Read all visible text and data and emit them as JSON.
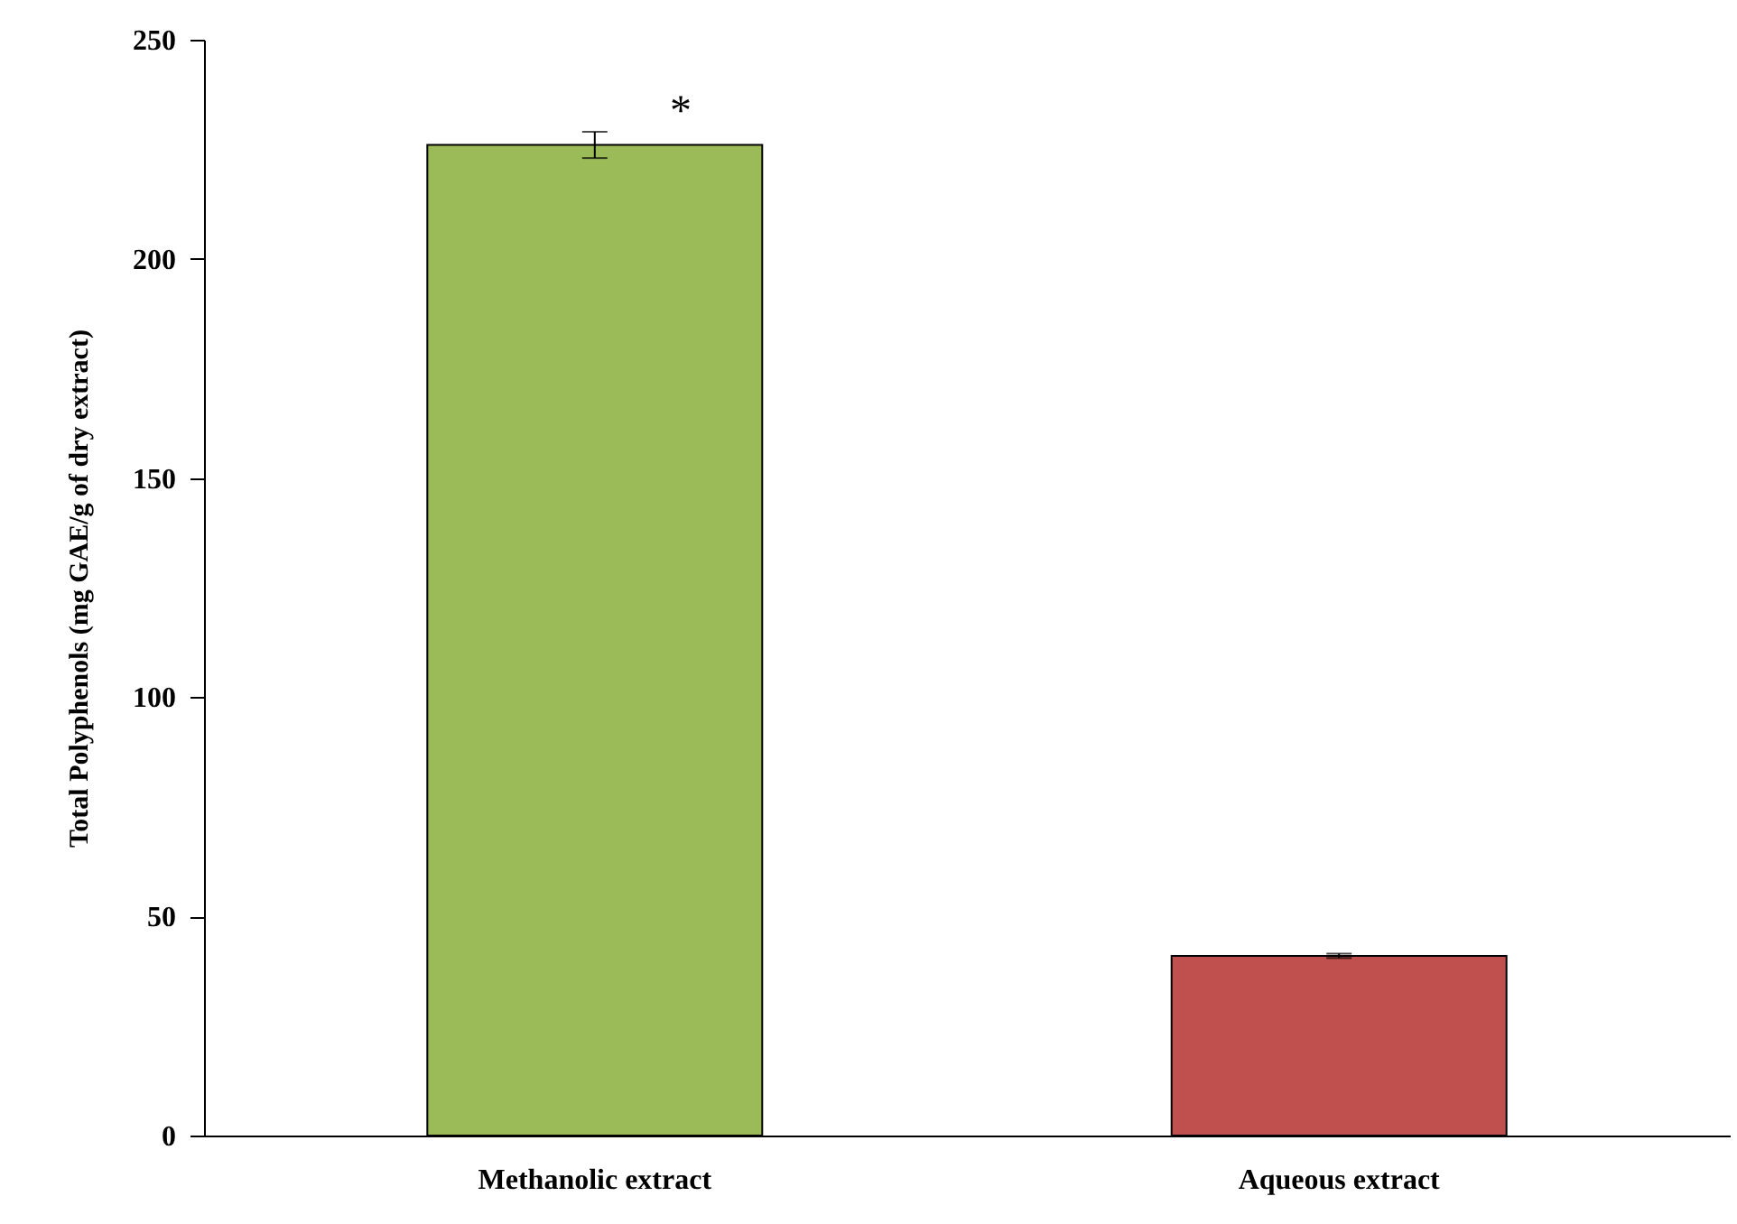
{
  "chart_data": {
    "type": "bar",
    "ylabel": "Total Polyphenols (mg GAE/g of dry extract)",
    "categories": [
      "Methanolic extract",
      "Aqueous extract"
    ],
    "values": [
      226,
      41
    ],
    "errors": [
      3,
      0.5
    ],
    "colors": [
      "#9bbb59",
      "#c0504d"
    ],
    "ylim": [
      0,
      250
    ],
    "yticks": [
      0,
      50,
      100,
      150,
      200,
      250
    ],
    "grid": false,
    "annotations": [
      "*"
    ]
  }
}
